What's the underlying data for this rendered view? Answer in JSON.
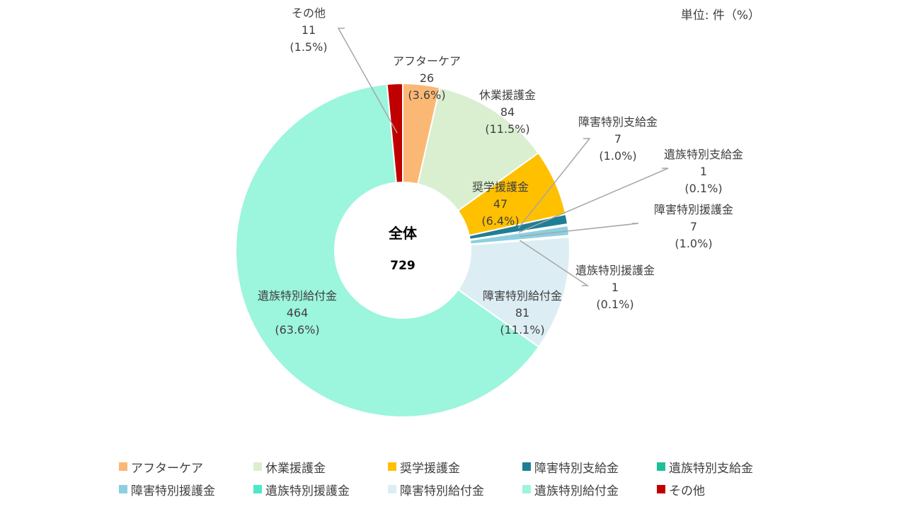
{
  "unit_label": "単位: 件（%）",
  "center": {
    "title": "全体",
    "total": "729"
  },
  "chart_data": {
    "type": "pie",
    "donut": true,
    "start_angle_deg": 0,
    "direction": "clockwise",
    "legend_position": "bottom",
    "series": [
      {
        "name": "アフターケア",
        "value": 26,
        "pct": "(3.6%)",
        "color": "#FBB875"
      },
      {
        "name": "休業援護金",
        "value": 84,
        "pct": "(11.5%)",
        "color": "#D9EFD0"
      },
      {
        "name": "奨学援護金",
        "value": 47,
        "pct": "(6.4%)",
        "color": "#FFC000"
      },
      {
        "name": "障害特別支給金",
        "value": 7,
        "pct": "(1.0%)",
        "color": "#1F7E96"
      },
      {
        "name": "遺族特別支給金",
        "value": 1,
        "pct": "(0.1%)",
        "color": "#1FBF9C"
      },
      {
        "name": "障害特別援護金",
        "value": 7,
        "pct": "(1.0%)",
        "color": "#8CCFE0"
      },
      {
        "name": "遺族特別援護金",
        "value": 1,
        "pct": "(0.1%)",
        "color": "#4DE8C8"
      },
      {
        "name": "障害特別給付金",
        "value": 81,
        "pct": "(11.1%)",
        "color": "#DCEEF4"
      },
      {
        "name": "遺族特別給付金",
        "value": 464,
        "pct": "(63.6%)",
        "color": "#9CF5DD"
      },
      {
        "name": "その他",
        "value": 11,
        "pct": "(1.5%)",
        "color": "#C00000"
      }
    ]
  }
}
